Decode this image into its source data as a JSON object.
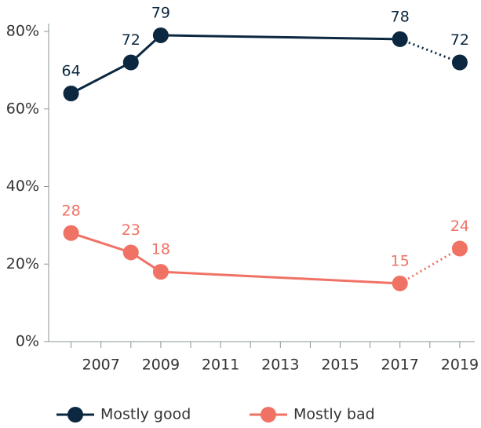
{
  "chart_data": {
    "type": "line",
    "x": [
      2006,
      2008,
      2009,
      2017,
      2019
    ],
    "series": [
      {
        "name": "Mostly good",
        "color": "#0c2840",
        "values": [
          64,
          72,
          79,
          78,
          72
        ]
      },
      {
        "name": "Mostly bad",
        "color": "#f07265",
        "values": [
          28,
          23,
          18,
          15,
          24
        ]
      }
    ],
    "xlim": [
      2005.25,
      2019.5
    ],
    "xticks": [
      2007,
      2009,
      2011,
      2013,
      2015,
      2017,
      2019
    ],
    "xminor_ticks": [
      2006,
      2008,
      2010,
      2012,
      2014,
      2016,
      2018
    ],
    "ylim": [
      0,
      80
    ],
    "yticks": [
      {
        "value": 0,
        "label": "0%"
      },
      {
        "value": 20,
        "label": "20%"
      },
      {
        "value": 40,
        "label": "40%"
      },
      {
        "value": 60,
        "label": "60%"
      },
      {
        "value": 80,
        "label": "80%"
      }
    ],
    "dashed_from": 2017,
    "legend": "bottom"
  }
}
